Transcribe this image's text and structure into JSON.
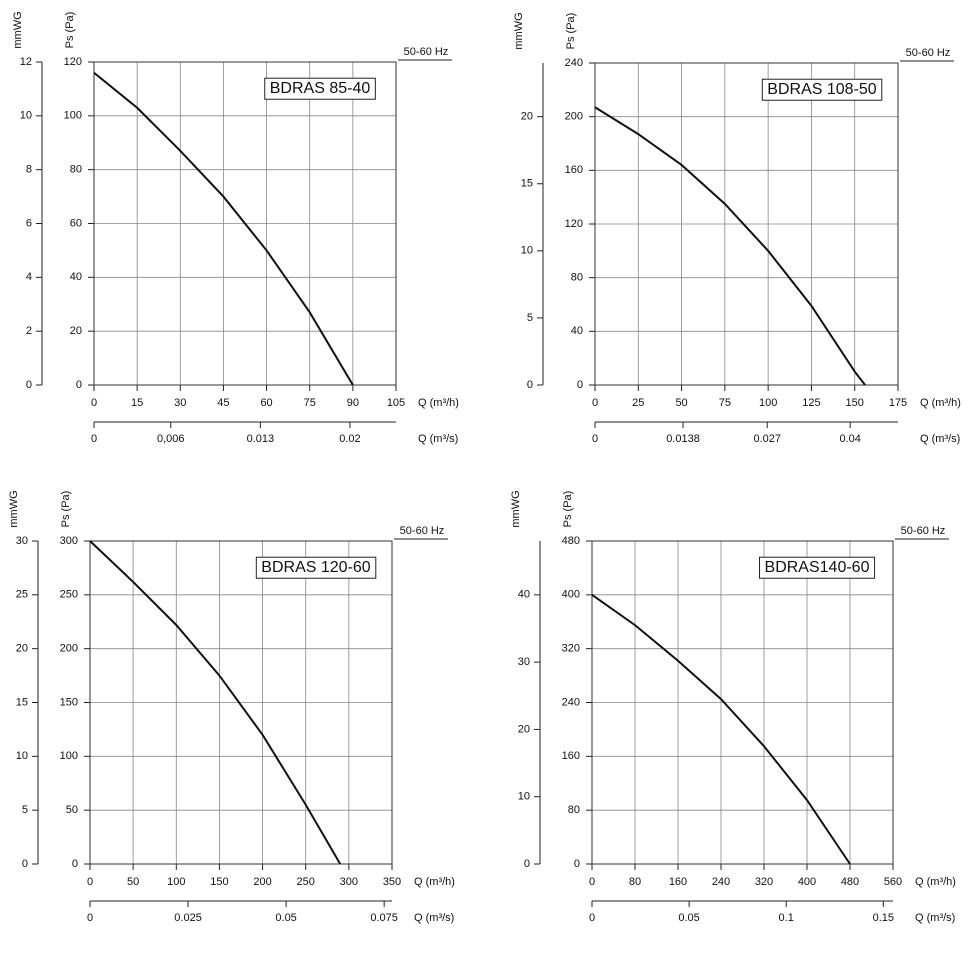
{
  "chart_data": [
    {
      "type": "line",
      "title": "BDRAS 85-40",
      "subtitle": "50-60 Hz",
      "y_label": "Ps (Pa)",
      "y2_label": "mmWG",
      "x_label": "Q (m³/h)",
      "x2_label": "Q (m³/s)",
      "xlim": [
        0,
        105
      ],
      "xticks": [
        0,
        15,
        30,
        45,
        60,
        75,
        90,
        105
      ],
      "x2lim": [
        0,
        0.0236
      ],
      "x2ticks": [
        0,
        {
          "value": 0.006,
          "label": "0,006"
        },
        0.013,
        0.02
      ],
      "ylim": [
        0,
        120
      ],
      "yticks": [
        0,
        20,
        40,
        60,
        80,
        100,
        120
      ],
      "y2lim": [
        0,
        12
      ],
      "y2ticks": [
        0,
        2,
        4,
        6,
        8,
        10,
        12
      ],
      "grid": true,
      "series": [
        {
          "color": "#111111",
          "x": [
            0,
            15,
            30,
            45,
            60,
            75,
            90
          ],
          "values": [
            116,
            103,
            87,
            70,
            50,
            27,
            0
          ]
        }
      ]
    },
    {
      "type": "line",
      "title": "BDRAS 108-50",
      "subtitle": "50-60 Hz",
      "y_label": "Ps (Pa)",
      "y2_label": "mmWG",
      "x_label": "Q (m³/h)",
      "x2_label": "Q (m³/s)",
      "xlim": [
        0,
        175
      ],
      "xticks": [
        0,
        25,
        50,
        75,
        100,
        125,
        150,
        175
      ],
      "x2lim": [
        0,
        0.0475
      ],
      "x2ticks": [
        0,
        0.0138,
        0.027,
        0.04
      ],
      "ylim": [
        0,
        240
      ],
      "yticks": [
        0,
        40,
        80,
        120,
        160,
        200,
        240
      ],
      "y2lim": [
        0,
        24
      ],
      "y2ticks": [
        0,
        5,
        10,
        15,
        20
      ],
      "grid": true,
      "series": [
        {
          "color": "#111111",
          "x": [
            0,
            25,
            50,
            75,
            100,
            125,
            150,
            156
          ],
          "values": [
            207,
            187,
            164,
            135,
            100,
            59,
            10,
            0
          ]
        }
      ]
    },
    {
      "type": "line",
      "title": "BDRAS 120-60",
      "subtitle": "50-60 Hz",
      "y_label": "Ps (Pa)",
      "y2_label": "mmWG",
      "x_label": "Q (m³/h)",
      "x2_label": "Q (m³/s)",
      "xlim": [
        0,
        350
      ],
      "xticks": [
        0,
        50,
        100,
        150,
        200,
        250,
        300,
        350
      ],
      "x2lim": [
        0,
        0.077
      ],
      "x2ticks": [
        0,
        0.025,
        0.05,
        0.075
      ],
      "ylim": [
        0,
        300
      ],
      "yticks": [
        0,
        50,
        100,
        150,
        200,
        250,
        300
      ],
      "y2lim": [
        0,
        30
      ],
      "y2ticks": [
        0,
        5,
        10,
        15,
        20,
        25,
        30
      ],
      "grid": true,
      "series": [
        {
          "color": "#111111",
          "x": [
            0,
            50,
            100,
            150,
            200,
            250,
            290
          ],
          "values": [
            300,
            262,
            222,
            175,
            120,
            55,
            0
          ]
        }
      ]
    },
    {
      "type": "line",
      "title": "BDRAS140-60",
      "subtitle": "50-60 Hz",
      "y_label": "Ps (Pa)",
      "y2_label": "mmWG",
      "x_label": "Q (m³/h)",
      "x2_label": "Q (m³/s)",
      "xlim": [
        0,
        560
      ],
      "xticks": [
        0,
        80,
        160,
        240,
        320,
        400,
        480,
        560
      ],
      "x2lim": [
        0,
        0.155
      ],
      "x2ticks": [
        0,
        0.05,
        0.1,
        0.15
      ],
      "ylim": [
        0,
        480
      ],
      "yticks": [
        0,
        80,
        160,
        240,
        320,
        400,
        480
      ],
      "y2lim": [
        0,
        48
      ],
      "y2ticks": [
        0,
        10,
        20,
        30,
        40
      ],
      "grid": true,
      "series": [
        {
          "color": "#111111",
          "x": [
            0,
            80,
            160,
            240,
            320,
            400,
            480
          ],
          "values": [
            400,
            355,
            302,
            245,
            175,
            95,
            0
          ]
        }
      ]
    }
  ]
}
